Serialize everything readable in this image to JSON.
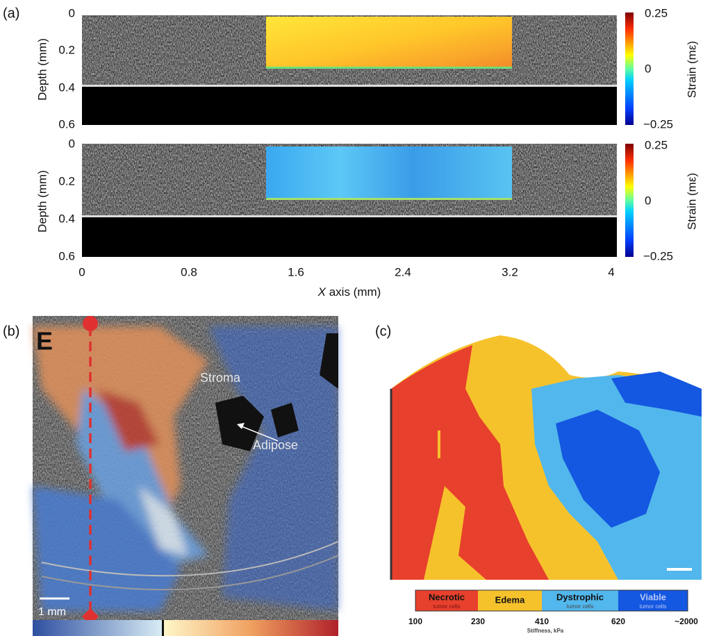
{
  "panel_a": {
    "label": "(a)",
    "top": {
      "y_axis_label": "Depth (mm)",
      "yticks": [
        "0",
        "0.2",
        "0.4",
        "0.6"
      ],
      "colorbar_ticks": [
        "0.25",
        "0",
        "−0.25"
      ],
      "colorbar_label": "Strain (mε)"
    },
    "bottom": {
      "y_axis_label": "Depth (mm)",
      "yticks": [
        "0",
        "0.2",
        "0.4",
        "0.6"
      ],
      "colorbar_ticks": [
        "0.25",
        "0",
        "−0.25"
      ],
      "colorbar_label": "Strain (mε)"
    },
    "xticks": [
      "0",
      "0.8",
      "1.6",
      "2.4",
      "3.2",
      "4"
    ],
    "x_axis_label_var": "X",
    "x_axis_label_rest": " axis (mm)"
  },
  "panel_b": {
    "label": "(b)",
    "inset_letter": "E",
    "annotations": [
      "Stroma",
      "Adipose"
    ],
    "scale_bar": "1 mm"
  },
  "panel_c": {
    "label": "(c)",
    "legend": [
      {
        "name": "Necrotic",
        "sub": "tumor cells"
      },
      {
        "name": "Edema"
      },
      {
        "name": "Dystrophic",
        "sub": "tumor cells"
      },
      {
        "name": "Viable",
        "sub": "tumor cells"
      }
    ],
    "ticks": [
      "100",
      "230",
      "410",
      "620",
      "~2000"
    ],
    "axis_label": "Stiffness, kPa"
  }
}
